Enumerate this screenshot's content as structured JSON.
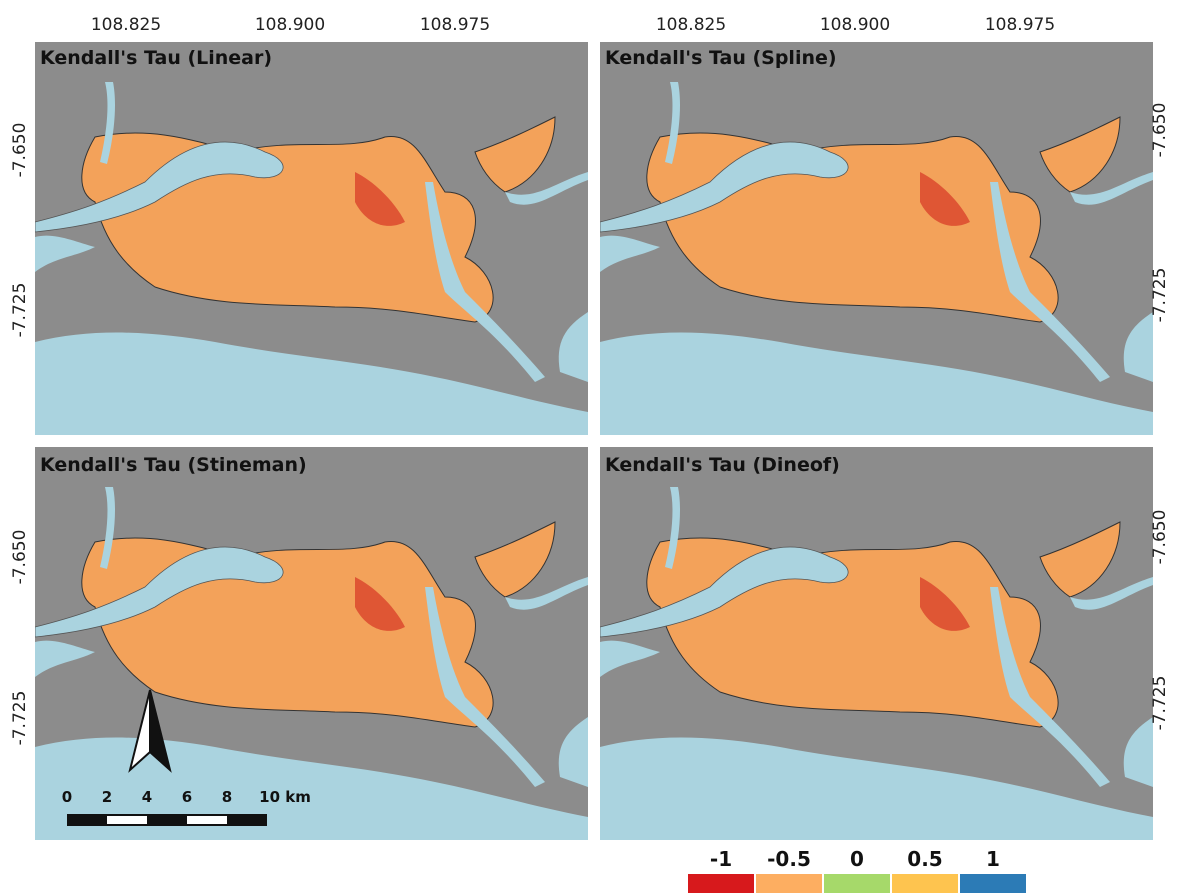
{
  "top_ticks": [
    "108.825",
    "108.900",
    "108.975"
  ],
  "side_ticks": [
    "-7.650",
    "-7.725"
  ],
  "panels": [
    {
      "title": "Kendall's Tau (Linear)"
    },
    {
      "title": "Kendall's Tau (Spline)"
    },
    {
      "title": "Kendall's Tau (Stineman)"
    },
    {
      "title": "Kendall's Tau (Dineof)"
    }
  ],
  "scale_bar": [
    "0",
    "2",
    "4",
    "6",
    "8",
    "10 km"
  ],
  "legend": [
    {
      "label": "-1",
      "color": "#d7191c"
    },
    {
      "label": "-0.5",
      "color": "#fdae61"
    },
    {
      "label": "0",
      "color": "#a6d96a"
    },
    {
      "label": "0.5",
      "color": "#fec44f"
    },
    {
      "label": "1",
      "color": "#2c7bb6"
    }
  ]
}
